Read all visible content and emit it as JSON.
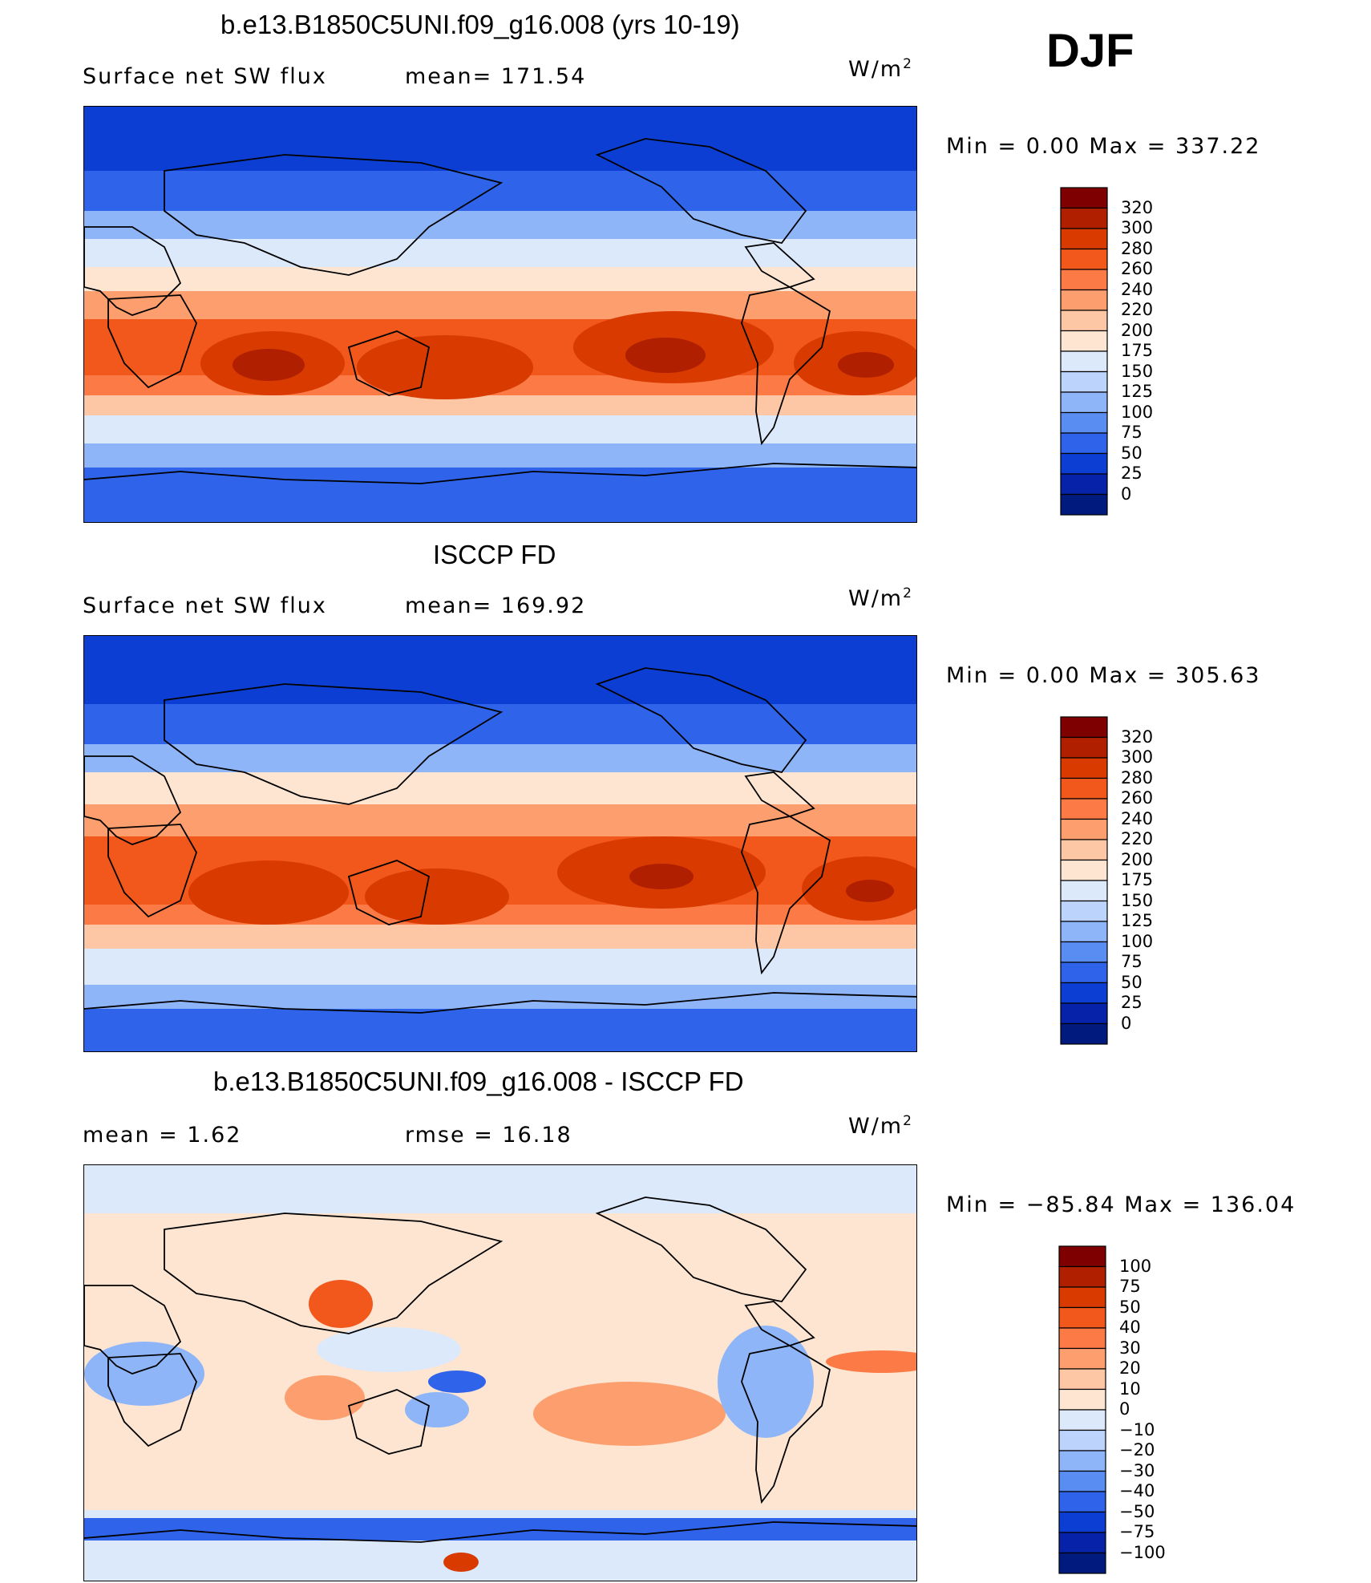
{
  "season": "DJF",
  "panels": [
    {
      "title": "b.e13.B1850C5UNI.f09_g16.008 (yrs 10-19)",
      "left_label": "Surface net SW flux",
      "mid_label": "mean=  171.54",
      "units_base": "W/m",
      "units_exp": "2",
      "minmax": "Min  =      0.00  Max  =  337.22",
      "colorbar": {
        "labels": [
          "320",
          "300",
          "280",
          "260",
          "240",
          "220",
          "200",
          "175",
          "150",
          "125",
          "100",
          "75",
          "50",
          "25",
          "0"
        ],
        "colors": [
          "#7f0000",
          "#b01f00",
          "#d93a00",
          "#f2571b",
          "#fb7a45",
          "#fc9e6e",
          "#fdc7a6",
          "#fde5d2",
          "#dce9fb",
          "#bcd3fb",
          "#8db5f8",
          "#5a8df2",
          "#2e63ea",
          "#0d3ed3",
          "#0622a8",
          "#001a7e"
        ]
      }
    },
    {
      "title": "ISCCP FD",
      "left_label": "Surface net SW flux",
      "mid_label": "mean=  169.92",
      "units_base": "W/m",
      "units_exp": "2",
      "minmax": "Min  =      0.00  Max  =  305.63",
      "colorbar": {
        "labels": [
          "320",
          "300",
          "280",
          "260",
          "240",
          "220",
          "200",
          "175",
          "150",
          "125",
          "100",
          "75",
          "50",
          "25",
          "0"
        ],
        "colors": [
          "#7f0000",
          "#b01f00",
          "#d93a00",
          "#f2571b",
          "#fb7a45",
          "#fc9e6e",
          "#fdc7a6",
          "#fde5d2",
          "#dce9fb",
          "#bcd3fb",
          "#8db5f8",
          "#5a8df2",
          "#2e63ea",
          "#0d3ed3",
          "#0622a8",
          "#001a7e"
        ]
      }
    },
    {
      "title": "b.e13.B1850C5UNI.f09_g16.008 - ISCCP FD",
      "left_label": "mean  =     1.62",
      "mid_label": "rmse  =    16.18",
      "units_base": "W/m",
      "units_exp": "2",
      "minmax": "Min  = −85.84  Max  =  136.04",
      "colorbar": {
        "labels": [
          "100",
          "75",
          "50",
          "40",
          "30",
          "20",
          "10",
          "0",
          "−10",
          "−20",
          "−30",
          "−40",
          "−50",
          "−75",
          "−100"
        ],
        "colors": [
          "#7f0000",
          "#b01f00",
          "#d93a00",
          "#f2571b",
          "#fb7a45",
          "#fc9e6e",
          "#fdc7a6",
          "#fde5d2",
          "#dce9fb",
          "#bcd3fb",
          "#8db5f8",
          "#5a8df2",
          "#2e63ea",
          "#0d3ed3",
          "#0622a8",
          "#001a7e"
        ]
      }
    }
  ]
}
